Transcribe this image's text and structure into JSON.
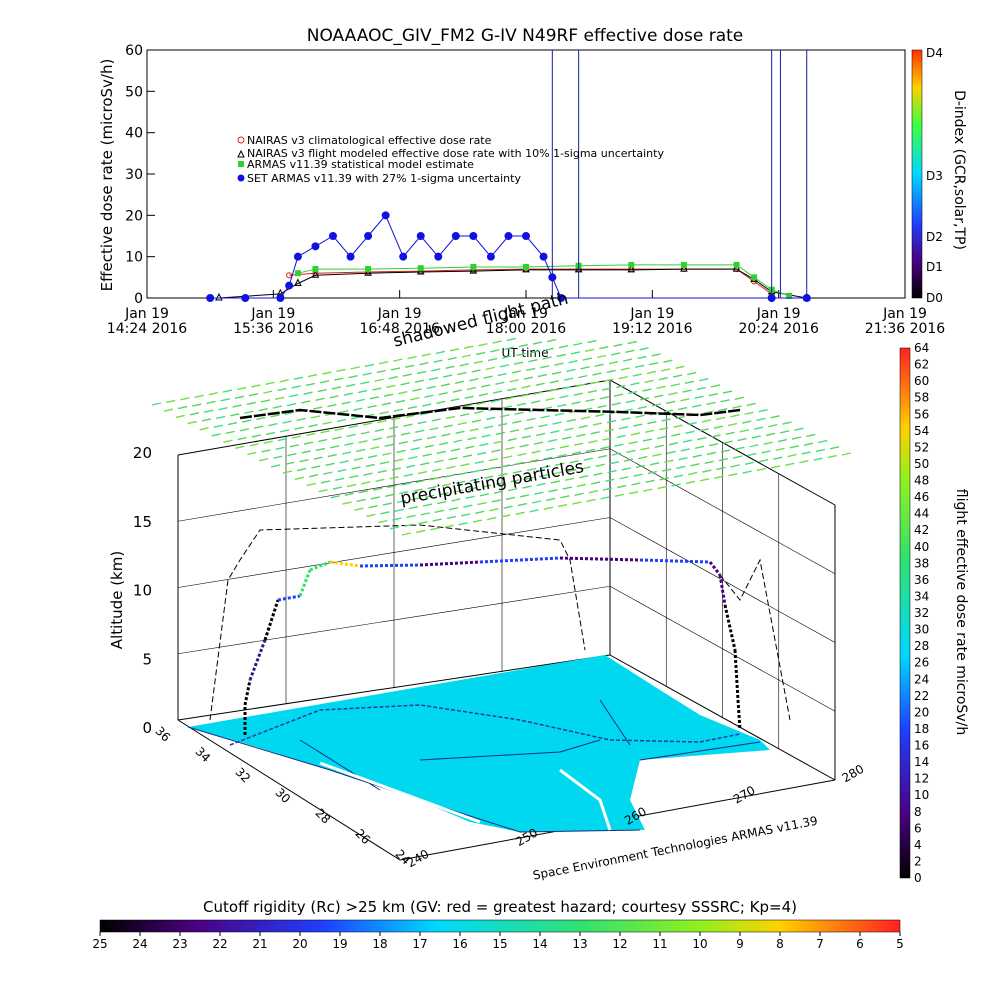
{
  "chart_data": [
    {
      "type": "line",
      "title": "NOAAAOC_GIV_FM2 G-IV   N49RF  effective dose rate",
      "ylabel": "Effective dose rate (microSv/h)",
      "xlabel": "UT time",
      "ylim": [
        0,
        60
      ],
      "yticks": [
        "0",
        "10",
        "20",
        "30",
        "40",
        "50",
        "60"
      ],
      "xticks": [
        {
          "date": "Jan 19",
          "time": "14:24 2016"
        },
        {
          "date": "Jan 19",
          "time": "15:36 2016"
        },
        {
          "date": "Jan 19",
          "time": "16:48 2016"
        },
        {
          "date": "Jan 19",
          "time": "18:00 2016"
        },
        {
          "date": "Jan 19",
          "time": "19:12 2016"
        },
        {
          "date": "Jan 19",
          "time": "20:24 2016"
        },
        {
          "date": "Jan 19",
          "time": "21:36 2016"
        }
      ],
      "xlim": [
        "14:24",
        "21:36"
      ],
      "legend_position": "upper-left",
      "series": [
        {
          "name": "NAIRAS v3 climatological effective dose rate",
          "color": "#d62020",
          "marker": "circle",
          "x": [
            "15:45",
            "16:00",
            "16:30",
            "17:00",
            "17:30",
            "18:00",
            "18:30",
            "19:00",
            "19:30",
            "20:00",
            "20:10",
            "20:20"
          ],
          "y": [
            5.5,
            6,
            6.3,
            6.5,
            6.8,
            7,
            7,
            7,
            7,
            7,
            4,
            1
          ]
        },
        {
          "name": "NAIRAS v3 flight modeled effective dose rate with 10% 1-sigma uncertainty",
          "color": "#000000",
          "marker": "triangle",
          "x": [
            "15:05",
            "15:40",
            "15:50",
            "16:00",
            "16:30",
            "17:00",
            "17:30",
            "18:00",
            "18:30",
            "19:00",
            "19:30",
            "20:00",
            "20:10",
            "20:20",
            "20:40"
          ],
          "y": [
            0,
            1,
            3.5,
            5.5,
            6,
            6.3,
            6.5,
            6.8,
            6.8,
            6.8,
            7,
            7,
            4.5,
            1.5,
            0
          ]
        },
        {
          "name": "ARMAS v11.39 statistical model estimate",
          "color": "#30d030",
          "marker": "square",
          "x": [
            "15:50",
            "16:00",
            "16:30",
            "17:00",
            "17:30",
            "18:00",
            "18:30",
            "19:00",
            "19:30",
            "20:00",
            "20:10",
            "20:20",
            "20:30"
          ],
          "y": [
            6,
            7,
            7,
            7.2,
            7.5,
            7.5,
            7.8,
            8,
            8,
            8,
            5,
            2,
            0.5
          ]
        },
        {
          "name": "SET ARMAS v11.39 with 27% 1-sigma uncertainty",
          "color": "#1010e0",
          "marker": "circle",
          "x": [
            "15:00",
            "15:20",
            "15:40",
            "15:45",
            "15:50",
            "16:00",
            "16:10",
            "16:20",
            "16:30",
            "16:40",
            "16:50",
            "17:00",
            "17:10",
            "17:20",
            "17:30",
            "17:40",
            "17:50",
            "18:00",
            "18:10",
            "18:15",
            "18:20",
            "20:20",
            "20:40"
          ],
          "y": [
            0,
            0,
            0,
            3,
            10,
            12.5,
            15,
            10,
            15,
            20,
            10,
            15,
            10,
            15,
            15,
            10,
            15,
            15,
            10,
            5,
            0,
            0,
            0
          ]
        }
      ],
      "secondary_axis": {
        "label": "D-index (GCR,solar,TP)",
        "ticks": [
          "D0",
          "D1",
          "D2",
          "D3",
          "D4"
        ],
        "colors": [
          "#000000",
          "#4b0082",
          "#1e40ff",
          "#00d8ff",
          "#40ff40",
          "#ffd000",
          "#ff3000"
        ]
      }
    },
    {
      "type": "scatter",
      "title": "",
      "ylabel": "Altitude (km)",
      "zlim": [
        0,
        20
      ],
      "zticks": [
        "0",
        "5",
        "10",
        "15",
        "20"
      ],
      "lat_ticks": [
        "24",
        "26",
        "28",
        "30",
        "32",
        "34",
        "36"
      ],
      "lon_ticks": [
        "240",
        "250",
        "260",
        "270",
        "280"
      ],
      "annotations": [
        "shadowed flight path",
        "precipitating particles"
      ],
      "credit": "Space Environment Technologies ARMAS v11.39",
      "colorbar": {
        "label": "flight effective dose rate microSv/h",
        "range": [
          0,
          64
        ],
        "ticks": [
          "0",
          "2",
          "4",
          "6",
          "8",
          "10",
          "12",
          "14",
          "16",
          "18",
          "20",
          "22",
          "24",
          "26",
          "28",
          "30",
          "32",
          "34",
          "36",
          "38",
          "40",
          "42",
          "44",
          "46",
          "48",
          "50",
          "52",
          "54",
          "56",
          "58",
          "60",
          "62",
          "64"
        ]
      },
      "flight_path": {
        "lon": [
          243,
          244,
          246,
          248,
          252,
          256,
          260,
          264,
          268,
          272,
          275,
          276
        ],
        "lat": [
          33,
          33,
          32.5,
          32.5,
          32.5,
          32.5,
          32,
          31.5,
          31,
          30.5,
          30,
          29.5
        ],
        "alt": [
          0,
          6,
          10,
          12.5,
          12.5,
          12.5,
          12.8,
          13,
          13,
          13,
          7,
          0
        ]
      }
    },
    {
      "type": "heatmap",
      "title": "Cutoff rigidity (Rc) >25 km (GV: red = greatest hazard; courtesy SSSRC; Kp=4)",
      "range": [
        25,
        5
      ],
      "ticks": [
        "25",
        "24",
        "23",
        "22",
        "21",
        "20",
        "19",
        "18",
        "17",
        "16",
        "15",
        "14",
        "13",
        "12",
        "11",
        "10",
        "9",
        "8",
        "7",
        "6",
        "5"
      ]
    }
  ]
}
